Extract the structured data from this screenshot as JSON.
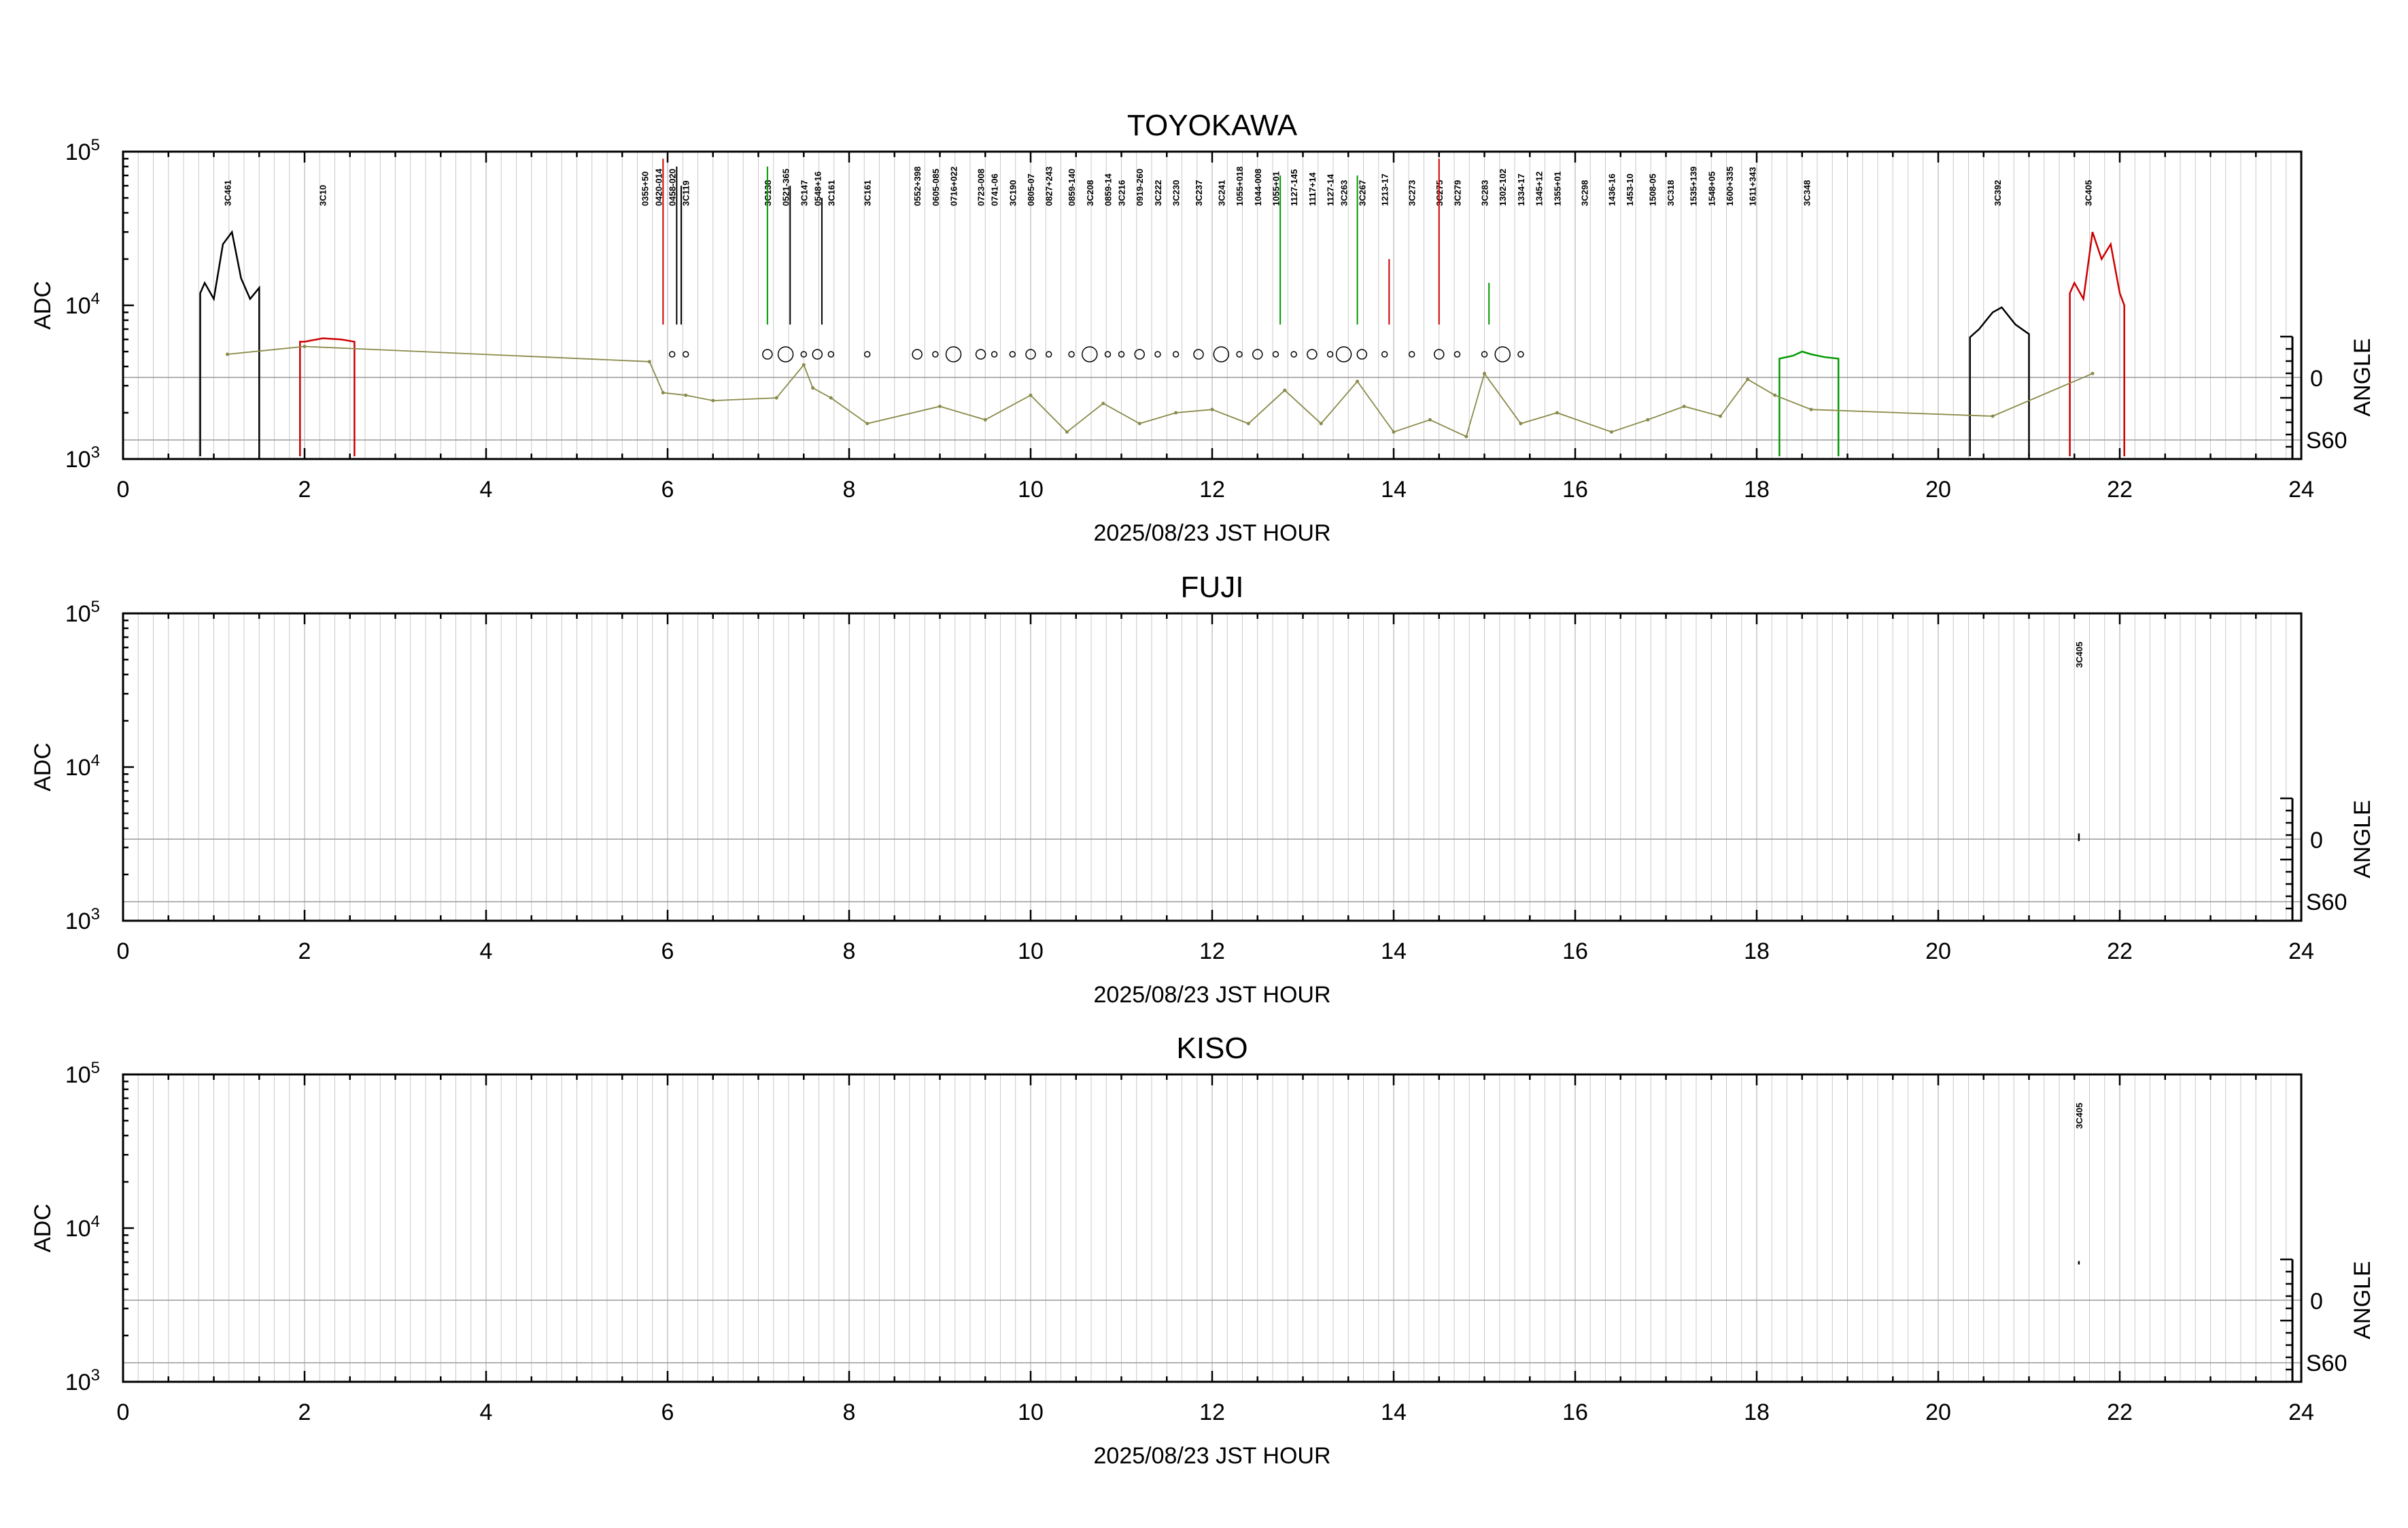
{
  "chart_data": [
    {
      "type": "line",
      "title": "TOYOKAWA",
      "xlabel": "2025/08/23 JST HOUR",
      "ylabel": "ADC",
      "y2label": "ANGLE",
      "xlim": [
        0,
        24
      ],
      "x_ticks": [
        "0",
        "2",
        "4",
        "6",
        "8",
        "10",
        "12",
        "14",
        "16",
        "18",
        "20",
        "22",
        "24"
      ],
      "ylim": [
        1000,
        100000
      ],
      "y_scale": "log",
      "y_ticks": [
        {
          "base": "10",
          "exp": "3"
        },
        {
          "base": "10",
          "exp": "4"
        },
        {
          "base": "10",
          "exp": "5"
        }
      ],
      "angle_ticks": [
        "0",
        "S60"
      ],
      "grid": true,
      "colors": {
        "black": "#000000",
        "red": "#cc0000",
        "green": "#009900",
        "olive": "#8a8a4a",
        "grid": "#c8c8c8"
      },
      "series": [
        {
          "color": "black",
          "x": [
            0.85,
            0.9,
            1.0,
            1.1,
            1.2,
            1.3,
            1.4,
            1.5
          ],
          "y": [
            12000,
            14000,
            11000,
            25000,
            30000,
            15000,
            11000,
            13000
          ]
        },
        {
          "color": "red",
          "x": [
            1.95,
            2.0,
            2.2,
            2.4,
            2.55
          ],
          "y": [
            5800,
            5800,
            6100,
            6000,
            5800
          ]
        },
        {
          "color": "black",
          "x": [
            20.35,
            20.45,
            20.6,
            20.7,
            20.85,
            21.0
          ],
          "y": [
            6200,
            7000,
            9000,
            9700,
            7500,
            6500
          ]
        },
        {
          "color": "red",
          "x": [
            21.45,
            21.5,
            21.6,
            21.7,
            21.8,
            21.9,
            22.0,
            22.05
          ],
          "y": [
            12000,
            14000,
            11000,
            30000,
            20000,
            25000,
            12000,
            10000
          ]
        },
        {
          "color": "green",
          "x": [
            18.25,
            18.4,
            18.5,
            18.6,
            18.75,
            18.9
          ],
          "y": [
            4500,
            4700,
            5000,
            4800,
            4600,
            4500
          ]
        }
      ],
      "angle_series": {
        "color": "olive",
        "x": [
          1.15,
          2.0,
          5.8,
          5.95,
          6.2,
          6.5,
          7.2,
          7.5,
          7.6,
          7.8,
          8.2,
          9.0,
          9.5,
          10.0,
          10.4,
          10.8,
          11.2,
          11.6,
          12.0,
          12.4,
          12.8,
          13.2,
          13.6,
          14.0,
          14.4,
          14.8,
          15.0,
          15.4,
          15.8,
          16.4,
          16.8,
          17.2,
          17.6,
          17.9,
          18.2,
          18.6,
          20.6,
          21.7
        ],
        "y": [
          4800,
          5400,
          4300,
          2700,
          2600,
          2400,
          2500,
          4100,
          2900,
          2500,
          1700,
          2200,
          1800,
          2600,
          1500,
          2300,
          1700,
          2000,
          2100,
          1700,
          2800,
          1700,
          3200,
          1500,
          1800,
          1400,
          3600,
          1700,
          2000,
          1500,
          1800,
          2200,
          1900,
          3300,
          2600,
          2100,
          1900,
          3600
        ]
      },
      "source_labels": [
        {
          "x": 1.15,
          "text": "3C461",
          "color": "gray"
        },
        {
          "x": 2.2,
          "text": "3C10",
          "color": "red"
        },
        {
          "x": 5.75,
          "text": "0355+50",
          "color": "green"
        },
        {
          "x": 5.9,
          "text": "0420-014",
          "color": "red"
        },
        {
          "x": 6.05,
          "text": "0458-020",
          "color": "green"
        },
        {
          "x": 6.2,
          "text": "3C119",
          "color": "red"
        },
        {
          "x": 7.1,
          "text": "3C138",
          "color": "green"
        },
        {
          "x": 7.3,
          "text": "0521-365",
          "color": "black"
        },
        {
          "x": 7.5,
          "text": "3C147",
          "color": "red"
        },
        {
          "x": 7.65,
          "text": "0548+16",
          "color": "green"
        },
        {
          "x": 7.8,
          "text": "3C161",
          "color": "red"
        },
        {
          "x": 8.2,
          "text": "3C161",
          "color": "red"
        },
        {
          "x": 8.75,
          "text": "0552+398",
          "color": "green"
        },
        {
          "x": 8.95,
          "text": "0605-085",
          "color": "red"
        },
        {
          "x": 9.15,
          "text": "0716+022",
          "color": "green"
        },
        {
          "x": 9.45,
          "text": "0723-008",
          "color": "red"
        },
        {
          "x": 9.6,
          "text": "0741-06",
          "color": "green"
        },
        {
          "x": 9.8,
          "text": "3C190",
          "color": "red"
        },
        {
          "x": 10.0,
          "text": "0805-07",
          "color": "green"
        },
        {
          "x": 10.2,
          "text": "0827+243",
          "color": "red"
        },
        {
          "x": 10.45,
          "text": "0859-140",
          "color": "red"
        },
        {
          "x": 10.65,
          "text": "3C208",
          "color": "green"
        },
        {
          "x": 10.85,
          "text": "0859-14",
          "color": "gray"
        },
        {
          "x": 11.0,
          "text": "3C216",
          "color": "green"
        },
        {
          "x": 11.2,
          "text": "0919-260",
          "color": "red"
        },
        {
          "x": 11.4,
          "text": "3C222",
          "color": "green"
        },
        {
          "x": 11.6,
          "text": "3C230",
          "color": "red"
        },
        {
          "x": 11.85,
          "text": "3C237",
          "color": "green"
        },
        {
          "x": 12.1,
          "text": "3C241",
          "color": "gray"
        },
        {
          "x": 12.3,
          "text": "1055+018",
          "color": "green"
        },
        {
          "x": 12.5,
          "text": "1044-008",
          "color": "gray"
        },
        {
          "x": 12.7,
          "text": "1055+01",
          "color": "green"
        },
        {
          "x": 12.9,
          "text": "1127-145",
          "color": "gray"
        },
        {
          "x": 13.1,
          "text": "1117+14",
          "color": "red"
        },
        {
          "x": 13.3,
          "text": "1127-14",
          "color": "green"
        },
        {
          "x": 13.45,
          "text": "3C263",
          "color": "red"
        },
        {
          "x": 13.65,
          "text": "3C267",
          "color": "green"
        },
        {
          "x": 13.9,
          "text": "1213-17",
          "color": "green"
        },
        {
          "x": 14.2,
          "text": "3C273",
          "color": "gray"
        },
        {
          "x": 14.5,
          "text": "3C275",
          "color": "red"
        },
        {
          "x": 14.7,
          "text": "3C279",
          "color": "gray"
        },
        {
          "x": 15.0,
          "text": "3C283",
          "color": "green"
        },
        {
          "x": 15.2,
          "text": "1302-102",
          "color": "red"
        },
        {
          "x": 15.4,
          "text": "1334-17",
          "color": "green"
        },
        {
          "x": 15.6,
          "text": "1345+12",
          "color": "gray"
        },
        {
          "x": 15.8,
          "text": "1355+01",
          "color": "red"
        },
        {
          "x": 16.1,
          "text": "3C298",
          "color": "green"
        },
        {
          "x": 16.4,
          "text": "1436-16",
          "color": "red"
        },
        {
          "x": 16.6,
          "text": "1453-10",
          "color": "green"
        },
        {
          "x": 16.85,
          "text": "1508-05",
          "color": "gray"
        },
        {
          "x": 17.05,
          "text": "3C318",
          "color": "green"
        },
        {
          "x": 17.3,
          "text": "1535+139",
          "color": "gray"
        },
        {
          "x": 17.5,
          "text": "1548+05",
          "color": "red"
        },
        {
          "x": 17.7,
          "text": "1600+335",
          "color": "green"
        },
        {
          "x": 17.95,
          "text": "1611+343",
          "color": "red"
        },
        {
          "x": 18.55,
          "text": "3C348",
          "color": "green"
        },
        {
          "x": 20.65,
          "text": "3C392",
          "color": "gray"
        },
        {
          "x": 21.65,
          "text": "3C405",
          "color": "red"
        }
      ]
    },
    {
      "type": "line",
      "title": "FUJI",
      "xlabel": "2025/08/23 JST HOUR",
      "ylabel": "ADC",
      "y2label": "ANGLE",
      "xlim": [
        0,
        24
      ],
      "x_ticks": [
        "0",
        "2",
        "4",
        "6",
        "8",
        "10",
        "12",
        "14",
        "16",
        "18",
        "20",
        "22",
        "24"
      ],
      "ylim": [
        1000,
        100000
      ],
      "y_scale": "log",
      "y_ticks": [
        {
          "base": "10",
          "exp": "3"
        },
        {
          "base": "10",
          "exp": "4"
        },
        {
          "base": "10",
          "exp": "5"
        }
      ],
      "angle_ticks": [
        "0",
        "S60"
      ],
      "grid": true,
      "colors": {
        "black": "#000000",
        "red": "#cc0000",
        "green": "#009900",
        "olive": "#8a8a4a",
        "grid": "#c8c8c8"
      },
      "series": [
        {
          "color": "black",
          "x": [
            21.55,
            21.55
          ],
          "y": [
            3300,
            3700
          ]
        }
      ],
      "source_labels": [
        {
          "x": 21.55,
          "text": "3C405",
          "color": "red"
        }
      ]
    },
    {
      "type": "line",
      "title": "KISO",
      "xlabel": "2025/08/23 JST HOUR",
      "ylabel": "ADC",
      "y2label": "ANGLE",
      "xlim": [
        0,
        24
      ],
      "x_ticks": [
        "0",
        "2",
        "4",
        "6",
        "8",
        "10",
        "12",
        "14",
        "16",
        "18",
        "20",
        "22",
        "24"
      ],
      "ylim": [
        1000,
        100000
      ],
      "y_scale": "log",
      "y_ticks": [
        {
          "base": "10",
          "exp": "3"
        },
        {
          "base": "10",
          "exp": "4"
        },
        {
          "base": "10",
          "exp": "5"
        }
      ],
      "angle_ticks": [
        "0",
        "S60"
      ],
      "grid": true,
      "colors": {
        "black": "#000000",
        "red": "#cc0000",
        "green": "#009900",
        "olive": "#8a8a4a",
        "grid": "#c8c8c8"
      },
      "series": [
        {
          "color": "black",
          "x": [
            21.55,
            21.55
          ],
          "y": [
            5800,
            6100
          ]
        }
      ],
      "source_labels": [
        {
          "x": 21.55,
          "text": "3C405",
          "color": "green"
        }
      ]
    }
  ]
}
